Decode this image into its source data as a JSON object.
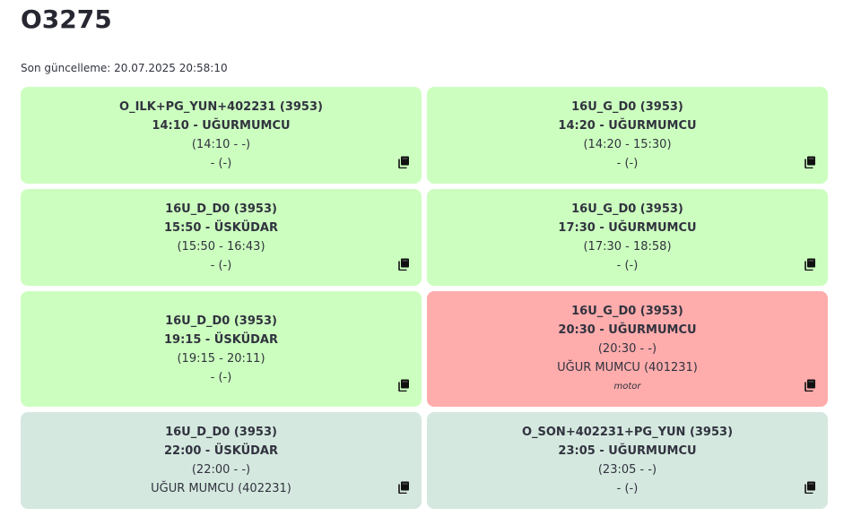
{
  "page": {
    "title": "O3275",
    "last_update": "Son güncelleme: 20.07.2025 20:58:10"
  },
  "cards": [
    {
      "route": "O_ILK+PG_YUN+402231 (3953)",
      "trip": "14:10 - UĞURMUMCU",
      "times": "(14:10 - -)",
      "driver": "- (-)",
      "note": "",
      "status": "green"
    },
    {
      "route": "16U_G_D0 (3953)",
      "trip": "14:20 - UĞURMUMCU",
      "times": "(14:20 - 15:30)",
      "driver": "- (-)",
      "note": "",
      "status": "green"
    },
    {
      "route": "16U_D_D0 (3953)",
      "trip": "15:50 - ÜSKÜDAR",
      "times": "(15:50 - 16:43)",
      "driver": "- (-)",
      "note": "",
      "status": "green"
    },
    {
      "route": "16U_G_D0 (3953)",
      "trip": "17:30 - UĞURMUMCU",
      "times": "(17:30 - 18:58)",
      "driver": "- (-)",
      "note": "",
      "status": "green"
    },
    {
      "route": "16U_D_D0 (3953)",
      "trip": "19:15 - ÜSKÜDAR",
      "times": "(19:15 - 20:11)",
      "driver": "- (-)",
      "note": "",
      "status": "green"
    },
    {
      "route": "16U_G_D0 (3953)",
      "trip": "20:30 - UĞURMUMCU",
      "times": "(20:30 - -)",
      "driver": "UĞUR MUMCU (401231)",
      "note": "motor",
      "status": "red"
    },
    {
      "route": "16U_D_D0 (3953)",
      "trip": "22:00 - ÜSKÜDAR",
      "times": "(22:00 - -)",
      "driver": "UĞUR MUMCU (402231)",
      "note": "",
      "status": "pale"
    },
    {
      "route": "O_SON+402231+PG_YUN (3953)",
      "trip": "23:05 - UĞURMUMCU",
      "times": "(23:05 - -)",
      "driver": "- (-)",
      "note": "",
      "status": "pale"
    }
  ],
  "icons": {
    "copy": "copy-icon"
  },
  "colors": {
    "green": "#ccffbf",
    "red": "#ffacac",
    "pale": "#d5e8df"
  }
}
